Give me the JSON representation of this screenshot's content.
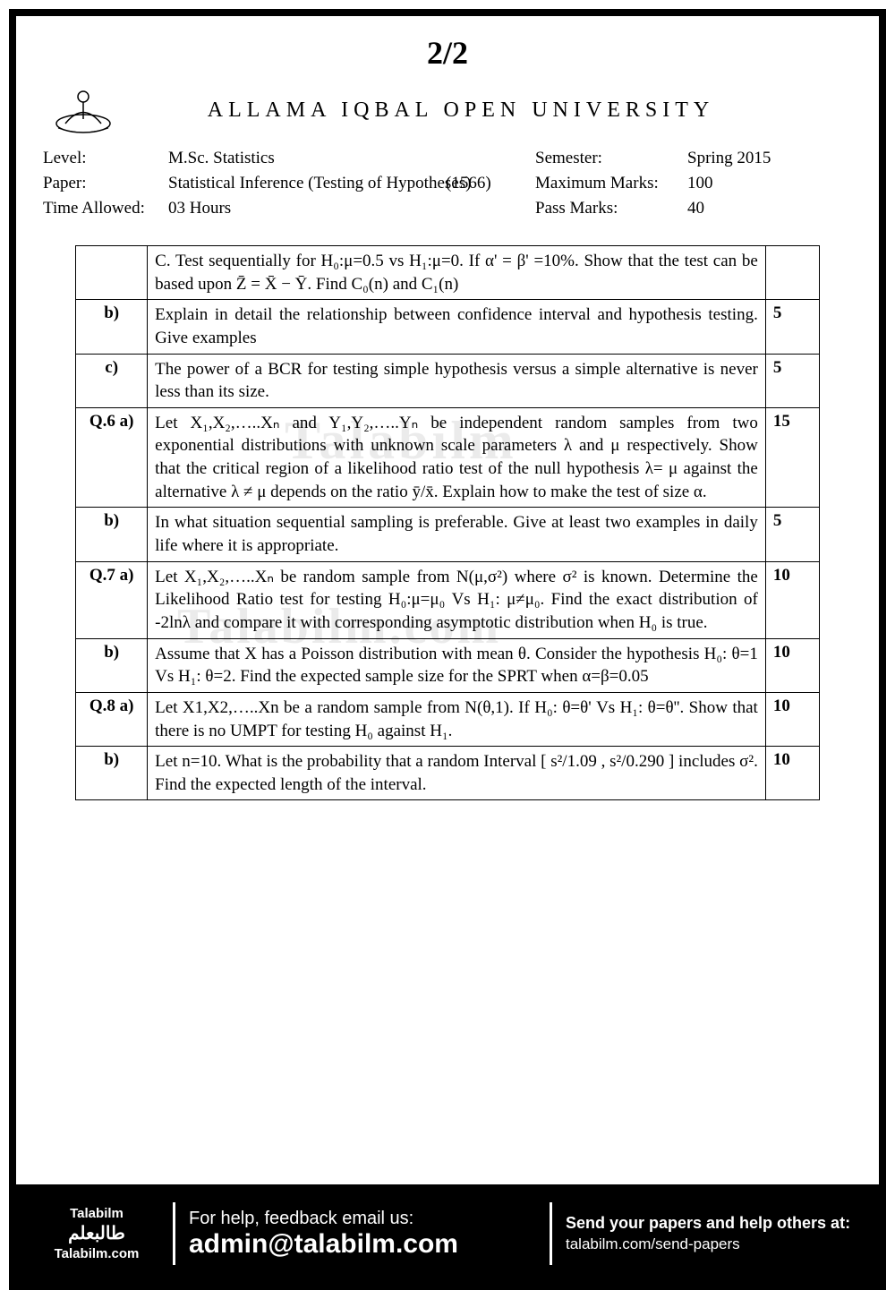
{
  "page_number": "2/2",
  "university": "ALLAMA IQBAL OPEN UNIVERSITY",
  "meta": {
    "level_label": "Level:",
    "level": "M.Sc. Statistics",
    "semester_label": "Semester:",
    "semester": "Spring 2015",
    "paper_label": "Paper:",
    "paper": "Statistical Inference (Testing of Hypotheses)",
    "code": "(1566)",
    "maxmarks_label": "Maximum Marks:",
    "maxmarks": "100",
    "time_label": "Time Allowed:",
    "time": "03 Hours",
    "passmarks_label": "Pass Marks:",
    "passmarks": "40"
  },
  "questions": [
    {
      "label": "",
      "text": "C. Test sequentially for H₀:μ=0.5 vs H₁:μ=0. If α' = β' =10%. Show that the test can be based upon Z̄ = X̄ − Ȳ. Find C₀(n) and C₁(n)",
      "marks": ""
    },
    {
      "label": "b)",
      "text": "Explain in detail the relationship between confidence interval and hypothesis testing. Give examples",
      "marks": "5"
    },
    {
      "label": "c)",
      "text": "The power of a BCR for testing simple hypothesis versus a simple alternative is  never less than its size.",
      "marks": "5"
    },
    {
      "label": "Q.6 a)",
      "text": "Let X₁,X₂,…..Xₙ and Y₁,Y₂,…..Yₙ be independent random samples from two exponential distributions with unknown scale parameters λ and μ respectively. Show that the critical region of a likelihood ratio test of the null hypothesis λ= μ against the alternative  λ ≠ μ depends on the ratio ȳ/x̄. Explain how to make the test of size α.",
      "marks": "15"
    },
    {
      "label": "b)",
      "text": "In what situation sequential sampling is preferable. Give at least two examples in daily life where it is appropriate.",
      "marks": "5"
    },
    {
      "label": "Q.7 a)",
      "text": "Let X₁,X₂,…..Xₙ be random sample from N(μ,σ²) where σ² is known. Determine the Likelihood Ratio test for testing H₀:μ=μ₀ Vs H₁: μ≠μ₀. Find the exact distribution of -2lnλ and compare it with corresponding asymptotic distribution when H₀ is true.",
      "marks": "10"
    },
    {
      "label": "b)",
      "text": "Assume that X has a Poisson distribution with mean θ. Consider the hypothesis H₀: θ=1 Vs H₁: θ=2. Find the expected sample size for the SPRT when α=β=0.05",
      "marks": "10"
    },
    {
      "label": "Q.8 a)",
      "text": "Let X1,X2,…..Xn be a random sample from N(θ,1). If H₀: θ=θ' Vs H₁: θ=θ''. Show that there is no UMPT for testing H₀ against H₁.",
      "marks": "10"
    },
    {
      "label": "b)",
      "text": "Let n=10. What is the probability that a random Interval [ s²/1.09 , s²/0.290 ] includes σ². Find the expected length of the interval.",
      "marks": "10"
    }
  ],
  "watermarks": {
    "w1": "Talabilm",
    "w2": "Talabilm.com"
  },
  "footer": {
    "brand1": "Talabilm",
    "brand_ar": "طالبعلم",
    "brand2": "Talabilm.com",
    "help1": "For help, feedback email us:",
    "help2": "admin@talabilm.com",
    "send1": "Send your papers and help others at:",
    "send2": "talabilm.com/send-papers"
  }
}
